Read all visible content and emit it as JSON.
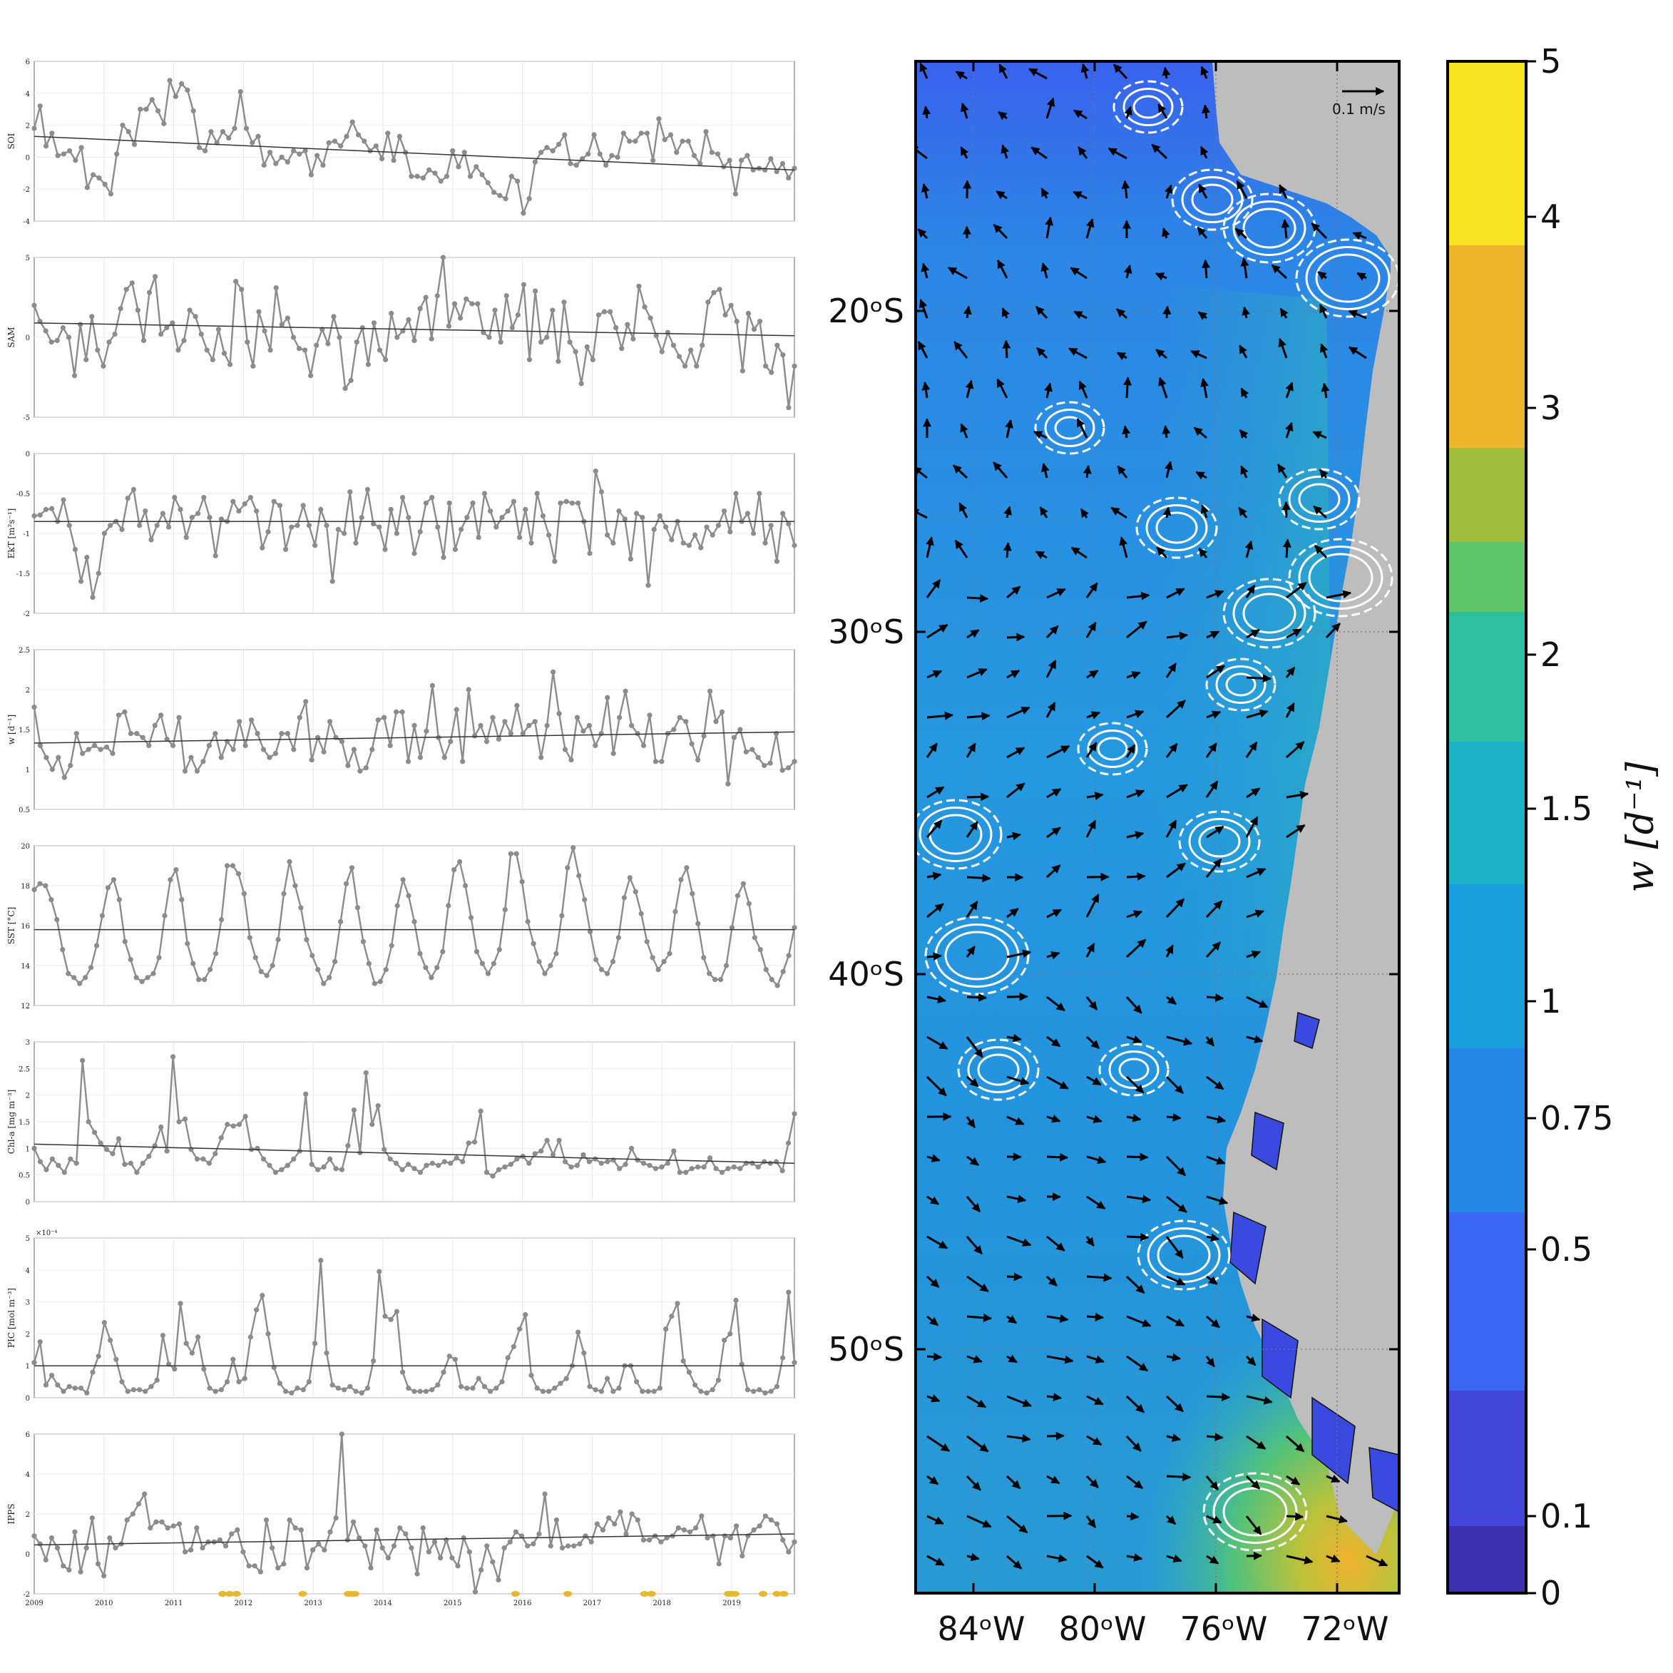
{
  "chart_data": [
    {
      "type": "line",
      "ylabel": "SOI",
      "ylim": [
        -4,
        6
      ],
      "yticks": [
        "6",
        "4",
        "2",
        "0",
        "-2",
        "-4"
      ],
      "values": [
        1.8,
        3.2,
        0.7,
        1.5,
        0.1,
        0.2,
        0.4,
        -0.2,
        0.6,
        -1.9,
        -1.1,
        -1.3,
        -1.7,
        -2.3,
        0.2,
        2.0,
        1.6,
        0.8,
        3.0,
        3.0,
        3.6,
        2.9,
        2.1,
        4.8,
        3.8,
        4.6,
        4.2,
        2.9,
        0.6,
        0.4,
        1.6,
        0.9,
        1.6,
        1.2,
        1.8,
        4.1,
        1.8,
        0.9,
        1.3,
        -0.5,
        0.3,
        -0.4,
        0.0,
        -0.3,
        0.4,
        0.2,
        0.4,
        -1.1,
        0.1,
        -0.5,
        0.9,
        1.0,
        0.7,
        1.3,
        2.2,
        1.4,
        1.0,
        0.4,
        0.7,
        -0.1,
        1.5,
        -0.2,
        1.3,
        0.3,
        -1.2,
        -1.2,
        -1.3,
        -0.8,
        -1.0,
        -1.5,
        -1.2,
        0.4,
        -0.6,
        0.3,
        -1.2,
        -0.6,
        -1.1,
        -1.6,
        -2.2,
        -2.4,
        -2.6,
        -1.2,
        -1.5,
        -3.5,
        -2.6,
        -0.3,
        0.3,
        0.6,
        0.4,
        0.8,
        1.4,
        -0.4,
        -0.5,
        -0.1,
        0.2,
        1.4,
        0.2,
        -0.5,
        0.1,
        0.0,
        1.5,
        1.0,
        1.0,
        1.5,
        1.5,
        -0.2,
        2.4,
        1.1,
        1.4,
        0.3,
        1.0,
        1.0,
        0.1,
        -0.4,
        1.6,
        0.3,
        0.2,
        -0.6,
        -0.2,
        -2.3,
        -0.2,
        0.1,
        -0.8,
        -0.7,
        -0.8,
        -0.1,
        -0.9,
        -0.4,
        -1.3,
        -0.7
      ],
      "trend": [
        1.3,
        -0.8
      ]
    },
    {
      "type": "line",
      "ylabel": "SAM",
      "ylim": [
        -5,
        5
      ],
      "yticks": [
        "5",
        "0",
        "-5"
      ],
      "values": [
        2.0,
        1.0,
        0.4,
        -0.3,
        -0.2,
        0.6,
        0.0,
        -2.4,
        0.8,
        -1.4,
        1.3,
        -0.8,
        -1.8,
        -0.3,
        0.2,
        1.8,
        3.0,
        3.4,
        1.7,
        -0.2,
        2.8,
        3.8,
        0.2,
        0.6,
        0.9,
        -0.8,
        -0.2,
        1.7,
        1.3,
        0.2,
        -0.8,
        -1.4,
        0.5,
        -1.0,
        -1.7,
        3.5,
        3.0,
        -0.3,
        -1.8,
        1.6,
        0.4,
        -0.8,
        3.1,
        0.8,
        1.2,
        0.0,
        -0.7,
        -0.8,
        -2.4,
        -0.5,
        0.5,
        -0.4,
        1.3,
        0.0,
        -3.2,
        -2.7,
        -0.3,
        0.6,
        -1.7,
        0.9,
        -0.8,
        -1.4,
        1.5,
        0.0,
        0.4,
        1.1,
        -0.2,
        1.8,
        2.5,
        -0.1,
        2.6,
        5.0,
        0.7,
        2.1,
        1.2,
        2.4,
        2.1,
        2.1,
        0.3,
        0.0,
        1.7,
        -0.3,
        2.6,
        0.6,
        1.4,
        3.3,
        -1.4,
        2.9,
        -0.3,
        0.0,
        1.7,
        -1.5,
        2.2,
        -0.3,
        -0.9,
        -2.9,
        -0.6,
        -1.4,
        1.4,
        1.6,
        1.6,
        0.6,
        -0.7,
        0.8,
        -0.1,
        3.2,
        1.9,
        1.2,
        0.1,
        -0.9,
        0.3,
        -0.5,
        -1.2,
        -1.8,
        -0.8,
        -1.8,
        -0.5,
        2.2,
        2.8,
        3.0,
        1.4,
        2.0,
        1.0,
        -2.1,
        1.5,
        0.5,
        1.0,
        -1.8,
        -2.2,
        -0.5,
        -1.1,
        -4.4,
        -1.8
      ],
      "trend": [
        0.9,
        0.1
      ]
    },
    {
      "type": "line",
      "ylabel": "EkT [m²s⁻¹]",
      "ylim": [
        -2,
        0
      ],
      "yticks": [
        "0",
        "-0.5",
        "-1",
        "-1.5",
        "-2"
      ],
      "values": [
        -0.78,
        -0.77,
        -0.7,
        -0.69,
        -0.85,
        -0.58,
        -0.9,
        -1.2,
        -1.6,
        -1.3,
        -1.8,
        -1.5,
        -1.0,
        -0.9,
        -0.85,
        -0.95,
        -0.56,
        -0.45,
        -0.9,
        -0.72,
        -1.08,
        -0.9,
        -0.75,
        -0.92,
        -0.55,
        -0.7,
        -1.05,
        -0.8,
        -0.75,
        -0.55,
        -0.8,
        -1.28,
        -0.82,
        -0.85,
        -0.6,
        -0.72,
        -0.63,
        -0.55,
        -0.72,
        -1.18,
        -0.98,
        -0.6,
        -0.65,
        -1.2,
        -0.92,
        -0.9,
        -0.65,
        -0.9,
        -1.15,
        -0.7,
        -0.9,
        -1.6,
        -0.95,
        -1.0,
        -0.48,
        -1.12,
        -0.8,
        -0.45,
        -0.88,
        -0.92,
        -1.2,
        -0.7,
        -1.0,
        -0.55,
        -0.8,
        -1.25,
        -0.98,
        -0.62,
        -0.55,
        -0.92,
        -1.3,
        -0.62,
        -1.2,
        -0.95,
        -0.8,
        -0.62,
        -1.05,
        -0.5,
        -0.72,
        -0.92,
        -0.8,
        -0.72,
        -0.6,
        -1.05,
        -0.7,
        -1.12,
        -0.5,
        -0.78,
        -1.02,
        -1.35,
        -0.62,
        -0.6,
        -0.62,
        -0.62,
        -0.85,
        -1.25,
        -0.22,
        -0.48,
        -1.02,
        -1.12,
        -0.72,
        -0.82,
        -1.32,
        -0.75,
        -0.8,
        -1.65,
        -0.95,
        -0.78,
        -0.92,
        -1.08,
        -0.85,
        -1.12,
        -1.15,
        -1.02,
        -1.18,
        -0.92,
        -1.02,
        -0.9,
        -0.72,
        -0.98,
        -0.5,
        -0.85,
        -0.75,
        -1.0,
        -0.5,
        -1.12,
        -0.9,
        -1.35,
        -0.75,
        -0.88,
        -1.15
      ],
      "trend": [
        -0.85,
        -0.85
      ]
    },
    {
      "type": "line",
      "ylabel": "w [d⁻¹]",
      "ylim": [
        0.5,
        2.5
      ],
      "yticks": [
        "2.5",
        "2",
        "1.5",
        "1",
        "0.5"
      ],
      "values": [
        1.78,
        1.3,
        1.15,
        1.0,
        1.15,
        0.9,
        1.05,
        1.45,
        1.2,
        1.25,
        1.3,
        1.25,
        1.28,
        1.2,
        1.68,
        1.72,
        1.45,
        1.45,
        1.4,
        1.3,
        1.55,
        1.68,
        1.38,
        1.3,
        1.65,
        0.98,
        1.15,
        0.98,
        1.1,
        1.3,
        1.45,
        1.15,
        1.35,
        1.25,
        1.6,
        1.3,
        1.62,
        1.45,
        1.25,
        1.15,
        1.2,
        1.45,
        1.45,
        1.25,
        1.65,
        1.85,
        1.12,
        1.4,
        1.22,
        1.6,
        1.4,
        1.35,
        1.05,
        1.25,
        0.98,
        1.02,
        1.25,
        1.62,
        1.65,
        1.3,
        1.72,
        1.72,
        1.1,
        1.55,
        1.15,
        1.48,
        2.05,
        1.4,
        1.15,
        1.35,
        1.75,
        1.1,
        2.0,
        1.42,
        1.55,
        1.35,
        1.65,
        1.38,
        1.6,
        1.45,
        1.8,
        1.45,
        1.55,
        1.6,
        1.15,
        1.55,
        2.22,
        1.7,
        1.25,
        1.12,
        1.65,
        1.48,
        1.55,
        1.3,
        1.45,
        1.9,
        1.2,
        1.65,
        1.98,
        1.55,
        1.45,
        1.3,
        1.68,
        1.1,
        1.1,
        1.45,
        1.5,
        1.65,
        1.6,
        1.32,
        1.12,
        1.42,
        1.98,
        1.6,
        1.72,
        0.82,
        1.4,
        1.5,
        1.22,
        1.25,
        1.15,
        1.05,
        1.08,
        1.45,
        0.99,
        1.02,
        1.1
      ],
      "trend": [
        1.33,
        1.47
      ]
    },
    {
      "type": "line",
      "ylabel": "SST [°C]",
      "ylim": [
        12,
        20
      ],
      "yticks": [
        "20",
        "18",
        "16",
        "14",
        "12"
      ],
      "values": [
        17.8,
        18.1,
        18.0,
        17.3,
        16.3,
        14.8,
        13.6,
        13.4,
        13.1,
        13.4,
        13.9,
        15.0,
        16.5,
        17.9,
        18.3,
        17.3,
        15.2,
        14.3,
        13.4,
        13.2,
        13.4,
        13.6,
        14.4,
        16.5,
        18.3,
        18.8,
        17.3,
        15.1,
        14.1,
        13.3,
        13.3,
        13.8,
        14.6,
        16.3,
        19.0,
        19.0,
        18.6,
        17.6,
        15.4,
        14.4,
        13.7,
        13.5,
        14.0,
        15.3,
        17.6,
        19.2,
        18.0,
        16.9,
        15.3,
        14.5,
        13.8,
        13.1,
        13.4,
        14.2,
        16.2,
        18.1,
        18.9,
        16.9,
        15.2,
        14.1,
        13.1,
        13.2,
        13.8,
        15.0,
        17.0,
        18.3,
        17.5,
        16.2,
        14.6,
        13.9,
        13.4,
        13.9,
        14.7,
        17.0,
        18.8,
        19.2,
        18.0,
        16.4,
        14.7,
        14.1,
        13.6,
        14.1,
        14.8,
        16.8,
        19.6,
        19.6,
        18.2,
        16.2,
        15.1,
        14.2,
        13.6,
        14.0,
        14.6,
        16.5,
        18.9,
        19.9,
        18.5,
        17.3,
        15.7,
        14.3,
        13.8,
        13.6,
        14.2,
        15.4,
        17.4,
        18.4,
        17.7,
        16.6,
        15.2,
        14.4,
        13.8,
        14.2,
        14.6,
        16.7,
        18.3,
        18.9,
        17.6,
        16.1,
        14.4,
        13.6,
        13.3,
        13.3,
        14.0,
        15.9,
        17.5,
        18.1,
        17.1,
        15.4,
        14.8,
        13.8,
        13.3,
        13.0,
        13.7,
        14.5,
        15.9
      ],
      "trend": [
        15.8,
        15.8
      ]
    },
    {
      "type": "line",
      "ylabel": "Chl-a [mg m⁻³]",
      "ylim": [
        0,
        3
      ],
      "yticks": [
        "3",
        "2.5",
        "2",
        "1.5",
        "1",
        "0.5",
        "0"
      ],
      "values": [
        1.0,
        0.75,
        0.6,
        0.8,
        0.68,
        0.55,
        0.8,
        0.72,
        2.65,
        1.5,
        1.3,
        1.1,
        0.98,
        0.9,
        1.18,
        0.7,
        0.72,
        0.55,
        0.72,
        0.85,
        1.05,
        1.4,
        0.95,
        2.72,
        1.5,
        1.55,
        0.98,
        0.8,
        0.8,
        0.72,
        0.9,
        1.2,
        1.45,
        1.42,
        1.45,
        1.6,
        0.98,
        1.0,
        0.8,
        0.68,
        0.55,
        0.6,
        0.68,
        0.8,
        0.95,
        2.02,
        0.7,
        0.6,
        0.65,
        0.8,
        0.62,
        0.6,
        1.05,
        1.72,
        0.92,
        2.42,
        1.45,
        1.8,
        0.98,
        0.8,
        0.72,
        0.6,
        0.7,
        0.62,
        0.55,
        0.68,
        0.72,
        0.68,
        0.75,
        0.72,
        0.82,
        0.75,
        1.1,
        1.12,
        1.7,
        0.55,
        0.48,
        0.6,
        0.65,
        0.7,
        0.8,
        0.85,
        0.72,
        0.9,
        0.95,
        1.15,
        0.88,
        1.15,
        0.75,
        0.65,
        0.68,
        0.88,
        0.75,
        0.8,
        0.72,
        0.75,
        0.78,
        0.62,
        0.7,
        1.0,
        0.78,
        0.72,
        0.68,
        0.62,
        0.65,
        0.72,
        0.95,
        0.55,
        0.55,
        0.62,
        0.65,
        0.65,
        0.82,
        0.62,
        0.55,
        0.62,
        0.65,
        0.62,
        0.72,
        0.72,
        0.65,
        0.75,
        0.72,
        0.75,
        0.58,
        1.1,
        1.65
      ],
      "trend": [
        1.08,
        0.72
      ]
    },
    {
      "type": "line",
      "ylabel": "PIC [mol m⁻³]",
      "ylim": [
        0,
        5
      ],
      "yticks": [
        "5",
        "4",
        "3",
        "2",
        "1",
        "0"
      ],
      "scale": "×10⁻⁴",
      "values": [
        1.1,
        1.75,
        0.4,
        0.7,
        0.4,
        0.2,
        0.35,
        0.3,
        0.3,
        0.15,
        0.8,
        1.3,
        2.35,
        1.8,
        1.2,
        0.5,
        0.2,
        0.25,
        0.25,
        0.2,
        0.35,
        0.55,
        1.95,
        1.05,
        0.9,
        2.95,
        1.7,
        1.4,
        1.9,
        0.9,
        0.3,
        0.2,
        0.25,
        0.5,
        1.2,
        0.5,
        0.6,
        1.9,
        2.75,
        3.2,
        2.0,
        0.95,
        0.45,
        0.2,
        0.15,
        0.3,
        0.25,
        0.5,
        1.7,
        4.3,
        1.4,
        0.4,
        0.3,
        0.25,
        0.35,
        0.2,
        0.15,
        0.3,
        1.15,
        3.95,
        2.55,
        2.45,
        2.7,
        0.8,
        0.3,
        0.2,
        0.2,
        0.2,
        0.25,
        0.4,
        0.8,
        1.3,
        1.2,
        0.35,
        0.3,
        0.3,
        0.6,
        0.35,
        0.2,
        0.3,
        0.5,
        1.25,
        1.6,
        2.15,
        2.6,
        0.7,
        0.3,
        0.2,
        0.2,
        0.3,
        0.45,
        0.6,
        1.0,
        2.05,
        1.4,
        0.35,
        0.25,
        0.2,
        0.6,
        0.2,
        0.3,
        1.0,
        1.0,
        0.5,
        0.2,
        0.2,
        0.2,
        0.3,
        2.15,
        2.55,
        2.95,
        1.15,
        0.8,
        0.4,
        0.2,
        0.15,
        0.25,
        0.55,
        1.8,
        2.0,
        3.05,
        1.05,
        0.25,
        0.2,
        0.25,
        0.15,
        0.2,
        0.35,
        1.25,
        3.3,
        1.1
      ],
      "trend": [
        1.0,
        1.0
      ]
    },
    {
      "type": "line",
      "ylabel": "IPPS",
      "ylim": [
        -2,
        6
      ],
      "yticks": [
        "6",
        "4",
        "2",
        "0",
        "-2"
      ],
      "xlabels": [
        "2009",
        "2010",
        "2011",
        "2012",
        "2013",
        "2014",
        "2015",
        "2016",
        "2017",
        "2018",
        "2019"
      ],
      "xlim": [
        2009,
        2019.9
      ],
      "values": [
        0.9,
        0.5,
        -0.3,
        0.8,
        0.3,
        -0.6,
        -0.8,
        1.1,
        -0.9,
        0.3,
        1.8,
        -0.5,
        -1.1,
        0.8,
        0.3,
        0.5,
        1.7,
        2.0,
        2.5,
        3.0,
        1.3,
        1.6,
        1.6,
        1.3,
        1.4,
        1.5,
        0.1,
        0.2,
        1.3,
        0.3,
        0.6,
        0.6,
        0.7,
        0.4,
        1.0,
        1.2,
        0.1,
        -0.6,
        -0.6,
        -0.9,
        1.7,
        0.3,
        -0.7,
        -0.5,
        1.7,
        1.3,
        1.2,
        -0.7,
        0.2,
        0.5,
        0.2,
        1.1,
        1.8,
        6.0,
        0.7,
        1.6,
        0.8,
        0.4,
        -0.7,
        1.2,
        0.3,
        -0.2,
        0.4,
        1.3,
        1.0,
        0.3,
        -1.0,
        1.3,
        0.1,
        0.6,
        -0.2,
        0.7,
        -0.2,
        -0.6,
        0.8,
        0.1,
        -1.9,
        -0.8,
        0.4,
        -0.4,
        -1.3,
        0.3,
        0.6,
        1.1,
        0.9,
        0.4,
        0.5,
        1.0,
        3.0,
        0.4,
        1.7,
        0.3,
        0.4,
        0.4,
        0.5,
        0.9,
        0.6,
        1.5,
        1.2,
        1.8,
        1.5,
        2.1,
        1.0,
        2.0,
        1.7,
        0.7,
        0.7,
        0.9,
        0.6,
        0.8,
        0.9,
        1.3,
        1.2,
        1.1,
        1.3,
        1.9,
        0.8,
        0.9,
        -0.5,
        0.9,
        0.8,
        1.4,
        -0.1,
        0.9,
        1.2,
        1.4,
        1.9,
        1.7,
        1.5,
        0.7,
        0.1,
        0.6
      ],
      "trend": [
        0.45,
        1.0
      ],
      "event_markers_x": [
        2011.7,
        2011.8,
        2011.9,
        2012.85,
        2013.5,
        2013.55,
        2013.6,
        2015.9,
        2016.65,
        2017.75,
        2017.85,
        2018.95,
        2019.0,
        2019.05,
        2019.45,
        2019.65,
        2019.75
      ]
    }
  ],
  "map": {
    "lon_labels": [
      "84ᵒW",
      "80ᵒW",
      "76ᵒW",
      "72ᵒW"
    ],
    "lat_labels": [
      "20ᵒS",
      "30ᵒS",
      "40ᵒS",
      "50ᵒS"
    ],
    "scale_label": "0.1 m/s",
    "ocean_color": "#2b8ce3",
    "land_color": "#bdbdbd"
  },
  "colorbar": {
    "title": "w [d⁻¹]",
    "tick_labels": [
      "5",
      "4",
      "3",
      "2",
      "1.5",
      "1",
      "0.75",
      "0.5",
      "0.1",
      "0"
    ],
    "colors": [
      "#f6e424",
      "#edb62e",
      "#9fbd3b",
      "#5fc56b",
      "#2ebf9f",
      "#1eb2c7",
      "#1a9fdc",
      "#2486e5",
      "#3a67f1",
      "#4346d8",
      "#3c2fb0"
    ]
  }
}
